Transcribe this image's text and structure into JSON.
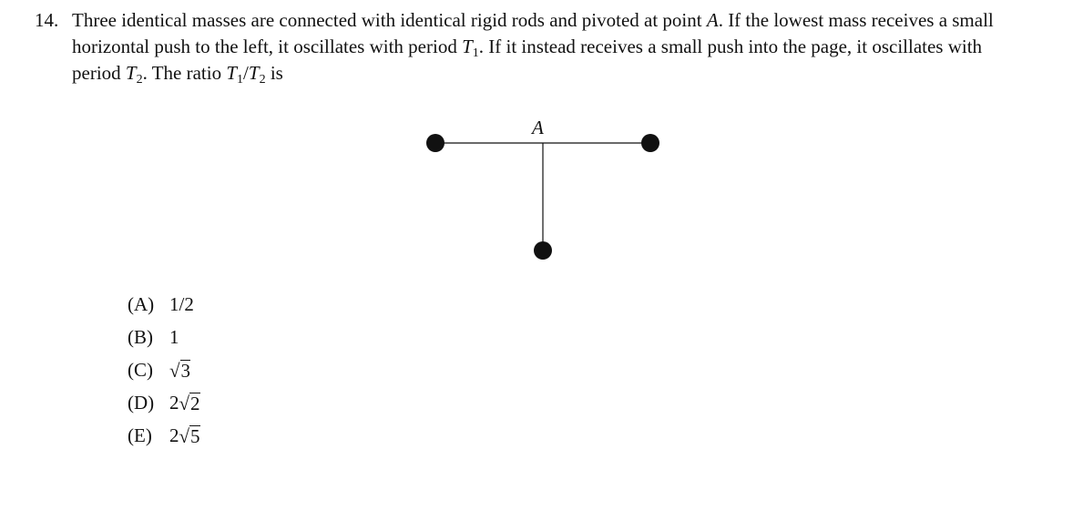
{
  "problem": {
    "number": "14.",
    "text_html": "Three identical masses are connected with identical rigid rods and pivoted at point <i>A</i>. If the lowest mass receives a small horizontal push to the left, it oscillates with period <i>T</i><sub>1</sub>. If it instead receives a small push into the page, it oscillates with period <i>T</i><sub>2</sub>. The ratio <i>T</i><sub>1</sub>/<i>T</i><sub>2</sub> is"
  },
  "figure": {
    "pivot_label": "A"
  },
  "choices": [
    {
      "letter": "(A)",
      "prefix": "1/2",
      "radicand": ""
    },
    {
      "letter": "(B)",
      "prefix": "1",
      "radicand": ""
    },
    {
      "letter": "(C)",
      "prefix": "",
      "radicand": "3"
    },
    {
      "letter": "(D)",
      "prefix": "2",
      "radicand": "2"
    },
    {
      "letter": "(E)",
      "prefix": "2",
      "radicand": "5"
    }
  ]
}
